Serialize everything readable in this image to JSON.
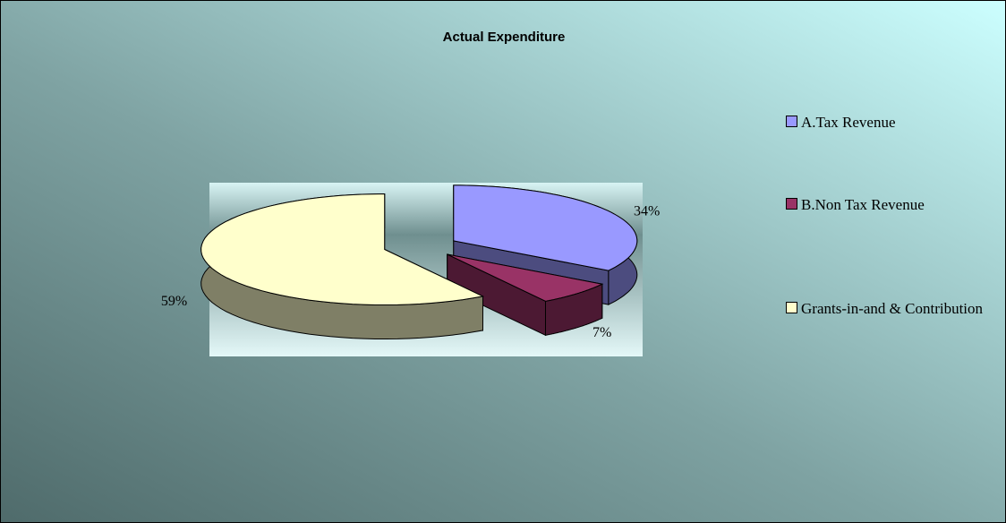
{
  "chart_data": {
    "type": "pie",
    "title": "Actual Expenditure",
    "categories": [
      "A.Tax Revenue",
      "B.Non Tax Revenue",
      "Grants-in-and & Contribution"
    ],
    "values": [
      34,
      7,
      59
    ],
    "value_labels": [
      "34%",
      "7%",
      "59%"
    ],
    "colors": [
      "#9999ff",
      "#993366",
      "#ffffcc"
    ],
    "legend": "right"
  }
}
